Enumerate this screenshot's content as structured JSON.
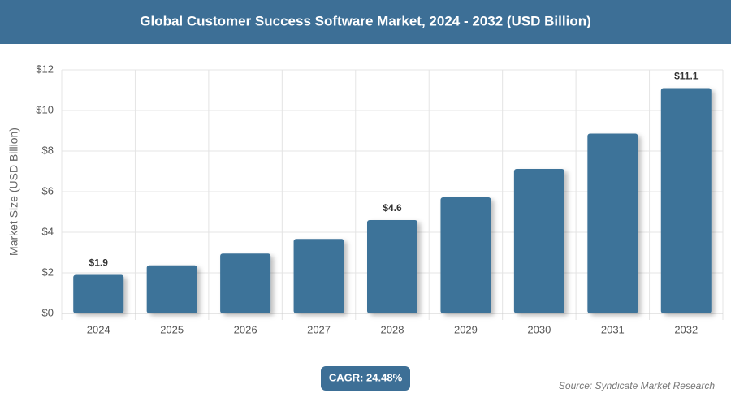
{
  "chart_data": {
    "type": "bar",
    "title": "Global Customer Success Software Market, 2024 - 2032 (USD Billion)",
    "y_label": "Market Size (USD Billion)",
    "categories": [
      "2024",
      "2025",
      "2026",
      "2027",
      "2028",
      "2029",
      "2030",
      "2031",
      "2032"
    ],
    "values": [
      1.9,
      2.37,
      2.95,
      3.67,
      4.6,
      5.72,
      7.12,
      8.86,
      11.1
    ],
    "value_labels": [
      "$1.9",
      null,
      null,
      null,
      "$4.6",
      null,
      null,
      null,
      "$11.1"
    ],
    "color": "#3d7399",
    "ylim": [
      0,
      12
    ],
    "yticks": [
      {
        "value": 0,
        "label": "$0"
      },
      {
        "value": 2,
        "label": "$2"
      },
      {
        "value": 4,
        "label": "$4"
      },
      {
        "value": 6,
        "label": "$6"
      },
      {
        "value": 8,
        "label": "$8"
      },
      {
        "value": 10,
        "label": "$10"
      },
      {
        "value": 12,
        "label": "$12"
      }
    ],
    "grid": true,
    "cagr": "CAGR: 24.48%",
    "source": "Source: Syndicate Market Research"
  }
}
